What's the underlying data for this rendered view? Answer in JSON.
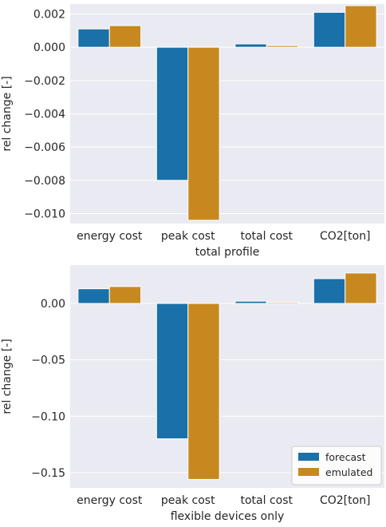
{
  "chart_data": [
    {
      "type": "bar",
      "categories": [
        "energy cost",
        "peak cost",
        "total cost",
        "CO2[ton]"
      ],
      "series": [
        {
          "name": "forecast",
          "values": [
            0.0011,
            -0.008,
            0.0002,
            0.0021
          ]
        },
        {
          "name": "emulated",
          "values": [
            0.0013,
            -0.0104,
            0.0001,
            0.0025
          ]
        }
      ],
      "xlabel": "total profile",
      "ylabel": "rel change [-]",
      "ylim": [
        -0.0106,
        0.0026
      ],
      "yticks": [
        0.002,
        0.0,
        -0.002,
        -0.004,
        -0.006,
        -0.008,
        -0.01
      ],
      "ytick_labels": [
        "0.002",
        "0.000",
        "−0.002",
        "−0.004",
        "−0.006",
        "−0.008",
        "−0.010"
      ],
      "grid": true,
      "legend": null
    },
    {
      "type": "bar",
      "categories": [
        "energy cost",
        "peak cost",
        "total cost",
        "CO2[ton]"
      ],
      "series": [
        {
          "name": "forecast",
          "values": [
            0.013,
            -0.12,
            0.002,
            0.022
          ]
        },
        {
          "name": "emulated",
          "values": [
            0.015,
            -0.156,
            0.001,
            0.027
          ]
        }
      ],
      "xlabel": "flexible devices only",
      "ylabel": "rel change [-]",
      "ylim": [
        -0.1635,
        0.034
      ],
      "yticks": [
        0.0,
        -0.05,
        -0.1,
        -0.15
      ],
      "ytick_labels": [
        "0.00",
        "−0.05",
        "−0.10",
        "−0.15"
      ],
      "grid": true,
      "legend": "lower-right"
    }
  ],
  "colors": {
    "forecast": "#1a70a8",
    "emulated": "#c7891f",
    "plot_background": "#eaeaf2"
  }
}
